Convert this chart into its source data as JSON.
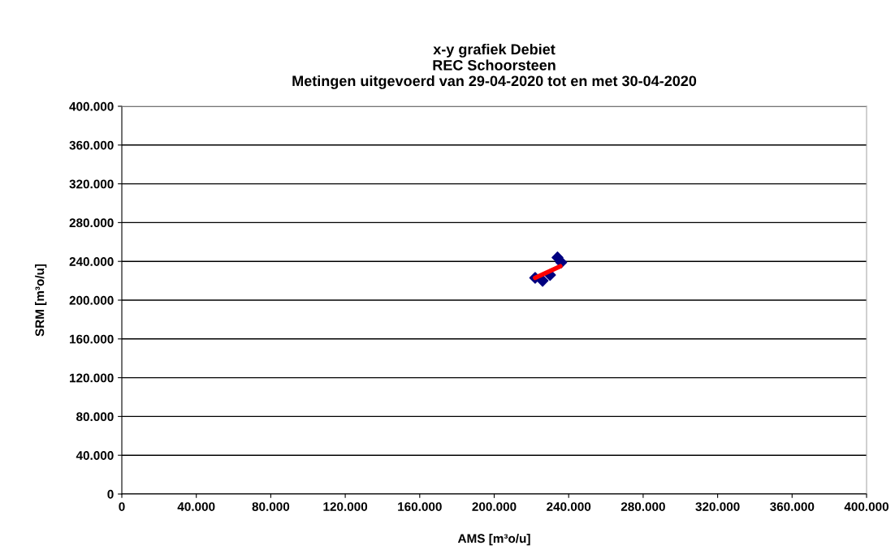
{
  "chart_data": {
    "type": "scatter",
    "title": "x-y grafiek Debiet\nREC Schoorsteen\nMetingen uitgevoerd van 29-04-2020 tot en met 30-04-2020",
    "xlabel": "AMS [m³o/u]",
    "ylabel": "SRM [m³o/u]",
    "marker": "diamond",
    "grid": "y",
    "legend": false,
    "xlim": [
      0,
      400000
    ],
    "ylim": [
      0,
      400000
    ],
    "xticks": [
      0,
      {
        "value": 40000,
        "label": "40.000"
      },
      {
        "value": 80000,
        "label": "80.000"
      },
      {
        "value": 120000,
        "label": "120.000"
      },
      {
        "value": 160000,
        "label": "160.000"
      },
      {
        "value": 200000,
        "label": "200.000"
      },
      {
        "value": 240000,
        "label": "240.000"
      },
      {
        "value": 280000,
        "label": "280.000"
      },
      {
        "value": 320000,
        "label": "320.000"
      },
      {
        "value": 360000,
        "label": "360.000"
      },
      {
        "value": 400000,
        "label": "400.000"
      }
    ],
    "yticks": [
      0,
      {
        "value": 40000,
        "label": "40.000"
      },
      {
        "value": 80000,
        "label": "80.000"
      },
      {
        "value": 120000,
        "label": "120.000"
      },
      {
        "value": 160000,
        "label": "160.000"
      },
      {
        "value": 200000,
        "label": "200.000"
      },
      {
        "value": 240000,
        "label": "240.000"
      },
      {
        "value": 280000,
        "label": "280.000"
      },
      {
        "value": 320000,
        "label": "320.000"
      },
      {
        "value": 360000,
        "label": "360.000"
      },
      {
        "value": 400000,
        "label": "400.000"
      }
    ],
    "series": [
      {
        "color": "#000080",
        "x": [
          222000,
          226000,
          230000,
          234000,
          236000
        ],
        "values": [
          223000,
          220000,
          226000,
          244000,
          239000
        ]
      },
      {
        "type": "line",
        "marker": "none",
        "color": "#ff0000",
        "x": [
          222000,
          235500
        ],
        "values": [
          223000,
          235000
        ]
      }
    ]
  }
}
